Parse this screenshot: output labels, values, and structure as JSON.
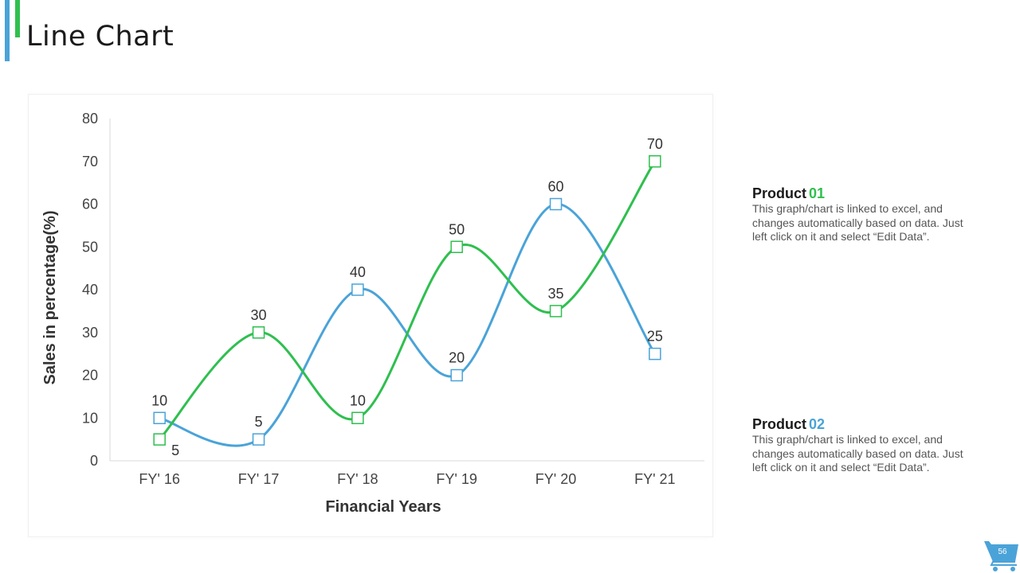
{
  "header": {
    "title": "Line Chart"
  },
  "colors": {
    "accent_blue": "#4aa3d8",
    "accent_green": "#2fbf4f"
  },
  "legend": [
    {
      "name": "Product",
      "number": "01",
      "color": "#2fbf4f",
      "description": "This graph/chart is linked to excel, and changes automatically based on data. Just left click on it and select “Edit Data”."
    },
    {
      "name": "Product",
      "number": "02",
      "color": "#4aa3d8",
      "description": "This graph/chart is linked to excel, and changes automatically based on data. Just left click on it and select “Edit Data”."
    }
  ],
  "footer": {
    "page_number": "56",
    "icon": "shopping-cart-icon"
  },
  "chart_data": {
    "type": "line",
    "title": "",
    "xlabel": "Financial Years",
    "ylabel": "Sales in percentage(%)",
    "categories": [
      "FY' 16",
      "FY' 17",
      "FY' 18",
      "FY' 19",
      "FY' 20",
      "FY' 21"
    ],
    "ylim": [
      0,
      80
    ],
    "yticks": [
      0,
      10,
      20,
      30,
      40,
      50,
      60,
      70,
      80
    ],
    "grid": false,
    "smooth": true,
    "marker": "square",
    "series": [
      {
        "name": "Product 01",
        "color": "#2fbf4f",
        "values": [
          5,
          30,
          10,
          50,
          35,
          70
        ]
      },
      {
        "name": "Product 02",
        "color": "#4aa3d8",
        "values": [
          10,
          5,
          40,
          20,
          60,
          25
        ]
      }
    ]
  }
}
